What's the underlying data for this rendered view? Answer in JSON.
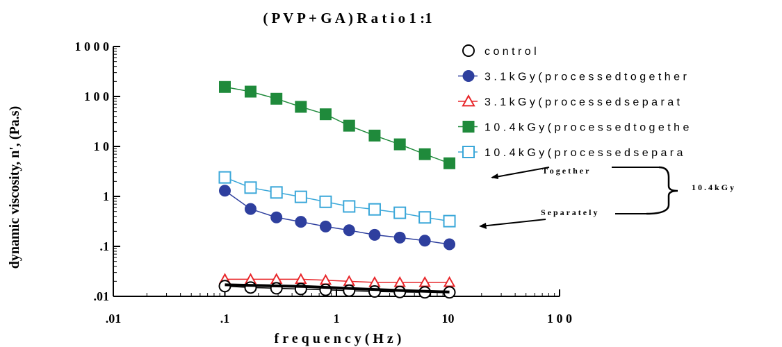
{
  "chart_data": {
    "type": "line",
    "title": "( P V P  +  G A ) R a t i o  1 :1",
    "xlabel": "f r e q u e n c y  ( H z )",
    "ylabel": "dynamic viscosity, n', (Pa.s)",
    "x_scale": "log",
    "y_scale": "log",
    "xlim": [
      0.01,
      100
    ],
    "ylim": [
      0.01,
      1000
    ],
    "x_ticks": [
      {
        "value": 0.01,
        "label": ".01"
      },
      {
        "value": 0.1,
        "label": ".1"
      },
      {
        "value": 1,
        "label": "1"
      },
      {
        "value": 10,
        "label": "10"
      },
      {
        "value": 100,
        "label": "1 0 0"
      }
    ],
    "y_ticks": [
      {
        "value": 0.01,
        "label": ".01"
      },
      {
        "value": 0.1,
        "label": ".1"
      },
      {
        "value": 1,
        "label": "1"
      },
      {
        "value": 10,
        "label": "1 0"
      },
      {
        "value": 100,
        "label": "1 0 0"
      },
      {
        "value": 1000,
        "label": "1 0 0 0"
      }
    ],
    "grid": false,
    "legend_position": "top-right",
    "x": [
      0.1,
      0.17,
      0.29,
      0.48,
      0.8,
      1.3,
      2.2,
      3.7,
      6.2,
      10.3
    ],
    "series": [
      {
        "name": "c o n t r o l",
        "marker": "open-circle",
        "color": "#000000",
        "values": [
          0.016,
          0.015,
          0.0145,
          0.014,
          0.0135,
          0.013,
          0.0125,
          0.0122,
          0.012,
          0.012
        ]
      },
      {
        "name": "3 . 1 k G y  ( p r o c e s s e d  t o g e t h e r",
        "marker": "filled-circle",
        "color": "#2E3F9E",
        "values": [
          1.3,
          0.56,
          0.38,
          0.31,
          0.25,
          0.21,
          0.17,
          0.15,
          0.13,
          0.11
        ]
      },
      {
        "name": "3 . 1 k G y  ( p r o c e s s e d  s e p a r a t",
        "marker": "open-triangle",
        "color": "#E8262A",
        "values": [
          0.022,
          0.022,
          0.022,
          0.022,
          0.021,
          0.02,
          0.019,
          0.019,
          0.019,
          0.019
        ]
      },
      {
        "name": "1 0 . 4 k G y  ( p r o c e s s e d  t o g e t h e",
        "marker": "filled-square",
        "color": "#1F8A3B",
        "values": [
          155,
          125,
          90,
          62,
          44,
          26,
          16.5,
          11,
          7,
          4.6
        ]
      },
      {
        "name": "1 0 . 4 k G y  ( p r o c e s s e d  s e p a r a",
        "marker": "open-square",
        "color": "#3AA7D9",
        "values": [
          2.4,
          1.5,
          1.2,
          0.98,
          0.78,
          0.63,
          0.55,
          0.47,
          0.38,
          0.32
        ]
      }
    ],
    "control_fit": {
      "color": "#000000",
      "x": [
        0.1,
        0.5,
        1,
        2,
        4,
        10.3
      ],
      "values": [
        0.017,
        0.0158,
        0.0148,
        0.0138,
        0.013,
        0.0122
      ]
    },
    "annotations": {
      "together_label": "T o g e t h e r",
      "separately_label": "S e p a r a t e l y",
      "group_label": "1 0 . 4 k G y"
    }
  }
}
